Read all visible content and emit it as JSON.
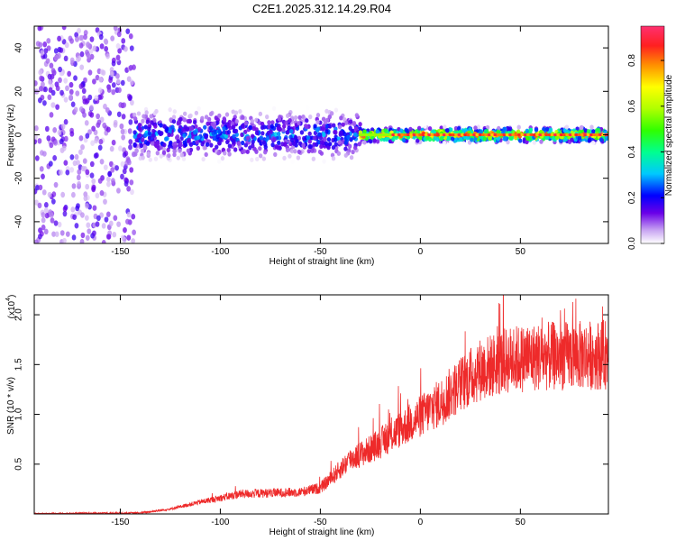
{
  "title": "C2E1.2025.312.14.29.R04",
  "chart_data": [
    {
      "type": "heatmap",
      "xlabel": "Height of straight line (km)",
      "ylabel": "Frequency (Hz)",
      "xlim": [
        -193,
        94
      ],
      "ylim": [
        -50,
        50
      ],
      "xticks": [
        -150,
        -100,
        -50,
        0,
        50
      ],
      "yticks": [
        -40,
        -20,
        0,
        20,
        40
      ],
      "colorbar": {
        "label": "Normalized spectral amplitude",
        "range": [
          0,
          0.95
        ],
        "ticks": [
          0.0,
          0.2,
          0.4,
          0.6,
          0.8
        ]
      },
      "regions": [
        {
          "x_range": [
            -193,
            -143
          ],
          "freq_spread": 50,
          "amplitude": 0.1,
          "description_value": "broadband noise"
        },
        {
          "x_range": [
            -143,
            -30
          ],
          "freq_spread": 10,
          "amplitude": 0.3
        },
        {
          "x_range": [
            -30,
            94
          ],
          "freq_spread": 3,
          "amplitude": 0.9
        }
      ]
    },
    {
      "type": "line",
      "xlabel": "Height of straight line (km)",
      "ylabel": "SNR (10 * v/v)",
      "ymultiplier": "(x10",
      "ymultiplier_exp": "4",
      "xlim": [
        -193,
        94
      ],
      "ylim": [
        0,
        2.2
      ],
      "xticks": [
        -150,
        -100,
        -50,
        0,
        50
      ],
      "yticks": [
        0.5,
        1.0,
        1.5,
        2.0
      ],
      "ytick_labels": [
        "0.5",
        "1.0",
        "1.5",
        "2.0"
      ],
      "color": "#ee2a2a",
      "trend_x": [
        -193,
        -140,
        -125,
        -110,
        -90,
        -60,
        -50,
        -45,
        -35,
        -25,
        -10,
        0,
        10,
        20,
        30,
        45,
        60,
        94
      ],
      "trend_y": [
        0.0,
        0.01,
        0.05,
        0.12,
        0.2,
        0.22,
        0.26,
        0.35,
        0.55,
        0.65,
        0.85,
        0.98,
        1.12,
        1.3,
        1.45,
        1.55,
        1.58,
        1.6
      ]
    }
  ]
}
